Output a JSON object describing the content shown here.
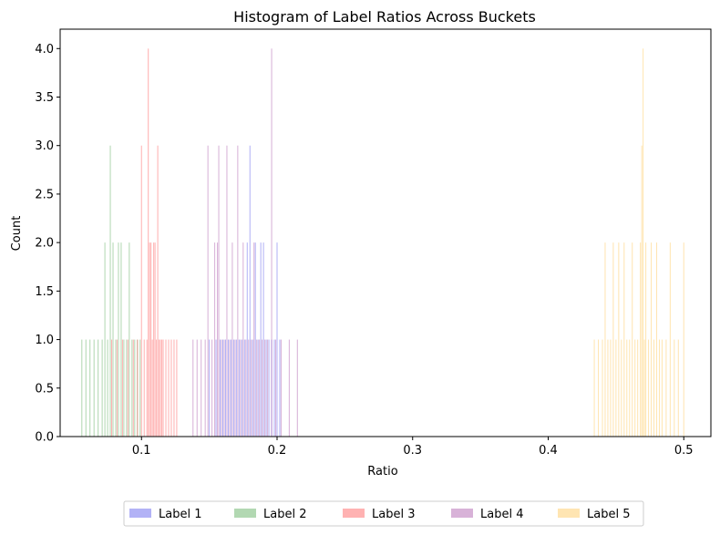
{
  "chart_data": {
    "type": "bar",
    "title": "Histogram of Label Ratios Across Buckets",
    "xlabel": "Ratio",
    "ylabel": "Count",
    "xlim": [
      0.04,
      0.52
    ],
    "ylim": [
      0,
      4.2
    ],
    "bin_width": 0.0007,
    "xticks": [
      0.1,
      0.2,
      0.3,
      0.4,
      0.5
    ],
    "xtick_labels": [
      "0.1",
      "0.2",
      "0.3",
      "0.4",
      "0.5"
    ],
    "yticks": [
      0.0,
      0.5,
      1.0,
      1.5,
      2.0,
      2.5,
      3.0,
      3.5,
      4.0
    ],
    "ytick_labels": [
      "0.0",
      "0.5",
      "1.0",
      "1.5",
      "2.0",
      "2.5",
      "3.0",
      "3.5",
      "4.0"
    ],
    "legend_position": "bottom-center, below axes",
    "grid": false,
    "series": [
      {
        "name": "Label 1",
        "color": "#6666ee",
        "alpha": 0.5,
        "x": [
          0.15,
          0.155,
          0.158,
          0.16,
          0.162,
          0.164,
          0.166,
          0.168,
          0.17,
          0.172,
          0.174,
          0.176,
          0.178,
          0.18,
          0.182,
          0.184,
          0.186,
          0.188,
          0.19,
          0.192,
          0.194,
          0.196,
          0.198,
          0.2,
          0.202
        ],
        "counts": [
          1,
          1,
          1,
          1,
          1,
          1,
          1,
          1,
          1,
          1,
          1,
          1,
          2,
          3,
          1,
          2,
          1,
          2,
          2,
          1,
          1,
          1,
          1,
          2,
          1
        ]
      },
      {
        "name": "Label 2",
        "color": "#66b266",
        "alpha": 0.5,
        "x": [
          0.056,
          0.059,
          0.062,
          0.065,
          0.068,
          0.071,
          0.073,
          0.075,
          0.077,
          0.079,
          0.081,
          0.083,
          0.085,
          0.087,
          0.089,
          0.091,
          0.093,
          0.095,
          0.097,
          0.099
        ],
        "counts": [
          1,
          1,
          1,
          1,
          1,
          1,
          2,
          1,
          3,
          2,
          1,
          2,
          2,
          1,
          1,
          2,
          1,
          1,
          1,
          1
        ]
      },
      {
        "name": "Label 3",
        "color": "#ff6666",
        "alpha": 0.5,
        "x": [
          0.078,
          0.082,
          0.086,
          0.09,
          0.094,
          0.097,
          0.1,
          0.102,
          0.104,
          0.105,
          0.106,
          0.107,
          0.108,
          0.109,
          0.11,
          0.111,
          0.112,
          0.113,
          0.114,
          0.115,
          0.116,
          0.118,
          0.12,
          0.122,
          0.124,
          0.126
        ],
        "counts": [
          1,
          1,
          1,
          1,
          1,
          1,
          3,
          1,
          1,
          4,
          2,
          2,
          1,
          2,
          2,
          1,
          3,
          1,
          1,
          1,
          1,
          1,
          1,
          1,
          1,
          1
        ]
      },
      {
        "name": "Label 4",
        "color": "#b266b2",
        "alpha": 0.5,
        "x": [
          0.138,
          0.141,
          0.144,
          0.147,
          0.149,
          0.152,
          0.154,
          0.156,
          0.157,
          0.159,
          0.161,
          0.163,
          0.165,
          0.167,
          0.169,
          0.171,
          0.173,
          0.175,
          0.177,
          0.179,
          0.181,
          0.183,
          0.185,
          0.187,
          0.189,
          0.191,
          0.193,
          0.196,
          0.199,
          0.203,
          0.209,
          0.215
        ],
        "counts": [
          1,
          1,
          1,
          1,
          3,
          1,
          2,
          2,
          3,
          1,
          1,
          3,
          1,
          2,
          1,
          3,
          1,
          2,
          1,
          1,
          1,
          2,
          1,
          1,
          1,
          1,
          1,
          4,
          1,
          1,
          1,
          1
        ]
      },
      {
        "name": "Label 5",
        "color": "#ffcc66",
        "alpha": 0.5,
        "x": [
          0.434,
          0.437,
          0.44,
          0.442,
          0.444,
          0.446,
          0.448,
          0.45,
          0.452,
          0.454,
          0.456,
          0.458,
          0.46,
          0.462,
          0.464,
          0.466,
          0.468,
          0.469,
          0.47,
          0.471,
          0.472,
          0.474,
          0.476,
          0.478,
          0.48,
          0.482,
          0.484,
          0.487,
          0.49,
          0.493,
          0.496,
          0.5
        ],
        "counts": [
          1,
          1,
          1,
          2,
          1,
          1,
          2,
          1,
          2,
          1,
          2,
          1,
          1,
          2,
          1,
          1,
          2,
          3,
          4,
          1,
          2,
          1,
          2,
          1,
          2,
          1,
          1,
          1,
          2,
          1,
          1,
          2
        ]
      }
    ]
  }
}
